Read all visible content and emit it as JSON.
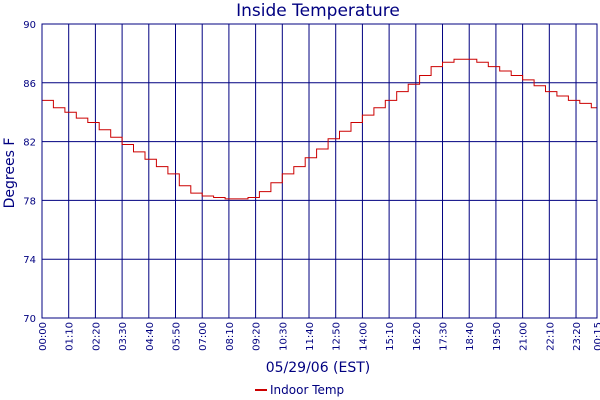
{
  "colors": {
    "axis": "#000080",
    "grid": "#000080",
    "line": "#cc0000",
    "background": "#ffffff"
  },
  "chart_data": {
    "type": "line",
    "title": "Inside Temperature",
    "xlabel": "05/29/06 (EST)",
    "ylabel": "Degrees F",
    "ylim": [
      70,
      90
    ],
    "yticks": [
      "70",
      "74",
      "78",
      "82",
      "86",
      "90"
    ],
    "x_tick_labels": [
      "00:00",
      "01:10",
      "02:20",
      "03:30",
      "04:40",
      "05:50",
      "07:00",
      "08:10",
      "09:20",
      "10:30",
      "11:40",
      "12:50",
      "14:00",
      "15:10",
      "16:20",
      "17:30",
      "18:40",
      "19:50",
      "21:00",
      "22:10",
      "23:20",
      "00:15"
    ],
    "grid": true,
    "legend": "bottom-center",
    "series": [
      {
        "name": "Indoor Temp",
        "color": "#cc0000",
        "x": [
          "00:00",
          "00:30",
          "01:00",
          "01:30",
          "02:00",
          "02:30",
          "03:00",
          "03:30",
          "04:00",
          "04:30",
          "05:00",
          "05:30",
          "06:00",
          "06:30",
          "07:00",
          "07:30",
          "08:00",
          "08:30",
          "09:00",
          "09:30",
          "10:00",
          "10:30",
          "11:00",
          "11:30",
          "12:00",
          "12:30",
          "13:00",
          "13:30",
          "14:00",
          "14:30",
          "15:00",
          "15:30",
          "16:00",
          "16:30",
          "17:00",
          "17:30",
          "18:00",
          "18:30",
          "19:00",
          "19:30",
          "20:00",
          "20:30",
          "21:00",
          "21:30",
          "22:00",
          "22:30",
          "23:00",
          "23:30",
          "00:00",
          "00:15"
        ],
        "values": [
          84.8,
          84.3,
          84.0,
          83.6,
          83.3,
          82.8,
          82.3,
          81.8,
          81.3,
          80.8,
          80.3,
          79.8,
          79.0,
          78.5,
          78.3,
          78.2,
          78.1,
          78.1,
          78.2,
          78.6,
          79.2,
          79.8,
          80.3,
          80.9,
          81.5,
          82.2,
          82.7,
          83.3,
          83.8,
          84.3,
          84.8,
          85.4,
          85.9,
          86.5,
          87.1,
          87.4,
          87.6,
          87.6,
          87.4,
          87.1,
          86.8,
          86.5,
          86.2,
          85.8,
          85.4,
          85.1,
          84.8,
          84.6,
          84.3,
          84.0
        ]
      }
    ]
  }
}
